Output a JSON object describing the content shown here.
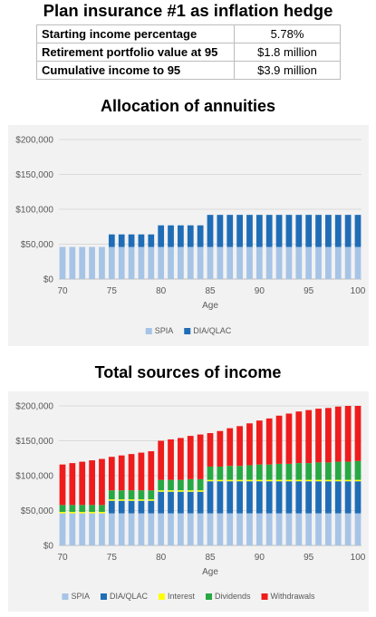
{
  "page": {
    "title": "Plan insurance #1 as inflation hedge"
  },
  "summary": {
    "rows": [
      {
        "label": "Starting income percentage",
        "value": "5.78%"
      },
      {
        "label": "Retirement portfolio value at 95",
        "value": "$1.8 million"
      },
      {
        "label": "Cumulative income to 95",
        "value": "$3.9 million"
      }
    ]
  },
  "colors": {
    "spia": "#a6c4e6",
    "dia_qlac": "#1f6db6",
    "interest": "#ffff00",
    "dividends": "#27a844",
    "withdrawals": "#ee1c1c"
  },
  "chart_data": [
    {
      "type": "bar",
      "stacked": true,
      "title": "Allocation of annuities",
      "xlabel": "Age",
      "ylabel": "",
      "ylim": [
        0,
        200000
      ],
      "yticks": [
        "$0",
        "$50,000",
        "$100,000",
        "$150,000",
        "$200,000"
      ],
      "xticks": [
        "70",
        "75",
        "80",
        "85",
        "90",
        "95",
        "100"
      ],
      "grid": true,
      "legend": "bottom",
      "categories": [
        70,
        71,
        72,
        73,
        74,
        75,
        76,
        77,
        78,
        79,
        80,
        81,
        82,
        83,
        84,
        85,
        86,
        87,
        88,
        89,
        90,
        91,
        92,
        93,
        94,
        95,
        96,
        97,
        98,
        99,
        100
      ],
      "series": [
        {
          "name": "SPIA",
          "color_key": "spia",
          "values": [
            46000,
            46000,
            46000,
            46000,
            46000,
            46000,
            46000,
            46000,
            46000,
            46000,
            46000,
            46000,
            46000,
            46000,
            46000,
            46000,
            46000,
            46000,
            46000,
            46000,
            46000,
            46000,
            46000,
            46000,
            46000,
            46000,
            46000,
            46000,
            46000,
            46000,
            46000
          ]
        },
        {
          "name": "DIA/QLAC",
          "color_key": "dia_qlac",
          "values": [
            0,
            0,
            0,
            0,
            0,
            18000,
            18000,
            18000,
            18000,
            18000,
            31000,
            31000,
            31000,
            31000,
            31000,
            46000,
            46000,
            46000,
            46000,
            46000,
            46000,
            46000,
            46000,
            46000,
            46000,
            46000,
            46000,
            46000,
            46000,
            46000,
            46000
          ]
        }
      ]
    },
    {
      "type": "bar",
      "stacked": true,
      "title": "Total sources of income",
      "xlabel": "Age",
      "ylabel": "",
      "ylim": [
        0,
        200000
      ],
      "yticks": [
        "$0",
        "$50,000",
        "$100,000",
        "$150,000",
        "$200,000"
      ],
      "xticks": [
        "70",
        "75",
        "80",
        "85",
        "90",
        "95",
        "100"
      ],
      "grid": true,
      "legend": "bottom",
      "categories": [
        70,
        71,
        72,
        73,
        74,
        75,
        76,
        77,
        78,
        79,
        80,
        81,
        82,
        83,
        84,
        85,
        86,
        87,
        88,
        89,
        90,
        91,
        92,
        93,
        94,
        95,
        96,
        97,
        98,
        99,
        100
      ],
      "series": [
        {
          "name": "SPIA",
          "color_key": "spia",
          "values": [
            46000,
            46000,
            46000,
            46000,
            46000,
            46000,
            46000,
            46000,
            46000,
            46000,
            46000,
            46000,
            46000,
            46000,
            46000,
            46000,
            46000,
            46000,
            46000,
            46000,
            46000,
            46000,
            46000,
            46000,
            46000,
            46000,
            46000,
            46000,
            46000,
            46000,
            46000
          ]
        },
        {
          "name": "DIA/QLAC",
          "color_key": "dia_qlac",
          "values": [
            0,
            0,
            0,
            0,
            0,
            18000,
            18000,
            18000,
            18000,
            18000,
            31000,
            31000,
            31000,
            31000,
            31000,
            46000,
            46000,
            46000,
            46000,
            46000,
            46000,
            46000,
            46000,
            46000,
            46000,
            46000,
            46000,
            46000,
            46000,
            46000,
            46000
          ]
        },
        {
          "name": "Interest",
          "color_key": "interest",
          "values": [
            2000,
            2000,
            2000,
            2000,
            2000,
            2000,
            2000,
            2000,
            2000,
            2000,
            2000,
            2000,
            2000,
            2000,
            2000,
            2000,
            2000,
            2000,
            2000,
            2000,
            2000,
            2000,
            2000,
            2000,
            2000,
            2000,
            2000,
            2000,
            2000,
            2000,
            2000
          ]
        },
        {
          "name": "Dividends",
          "color_key": "dividends",
          "values": [
            10000,
            10000,
            10000,
            10000,
            10000,
            13000,
            13000,
            13000,
            13000,
            13000,
            15000,
            15000,
            15000,
            16000,
            16000,
            19000,
            19000,
            20000,
            20000,
            21000,
            22000,
            22000,
            23000,
            23000,
            24000,
            24000,
            25000,
            25000,
            26000,
            26000,
            27000
          ]
        },
        {
          "name": "Withdrawals",
          "color_key": "withdrawals",
          "values": [
            58000,
            60000,
            62000,
            64000,
            66000,
            48000,
            50000,
            52000,
            54000,
            56000,
            56000,
            58000,
            60000,
            62000,
            64000,
            48000,
            51000,
            54000,
            57000,
            60000,
            63000,
            66000,
            69000,
            72000,
            74000,
            76000,
            77000,
            78000,
            79000,
            80000,
            79000
          ]
        }
      ]
    }
  ]
}
